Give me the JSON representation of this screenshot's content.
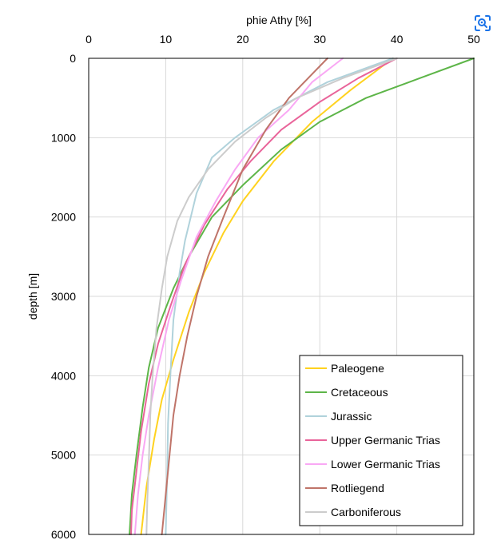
{
  "chart_data": {
    "type": "line",
    "title": "",
    "xlabel": "phie Athy [%]",
    "ylabel": "depth [m]",
    "xlim": [
      0,
      50
    ],
    "ylim": [
      0,
      6000
    ],
    "y_inverted": true,
    "x_axis_position": "top",
    "x_ticks": [
      0,
      10,
      20,
      30,
      40,
      50
    ],
    "y_ticks": [
      0,
      1000,
      2000,
      3000,
      4000,
      5000,
      6000
    ],
    "grid": true,
    "legend_position": "bottom-right",
    "series": [
      {
        "name": "Paleogene",
        "color": "#ffd21f",
        "points": [
          [
            39.5,
            0
          ],
          [
            34,
            400
          ],
          [
            29,
            800
          ],
          [
            24,
            1300
          ],
          [
            20,
            1800
          ],
          [
            17.5,
            2200
          ],
          [
            15,
            2700
          ],
          [
            13,
            3200
          ],
          [
            11,
            3800
          ],
          [
            9.5,
            4300
          ],
          [
            8.5,
            4800
          ],
          [
            7.5,
            5400
          ],
          [
            6.8,
            6000
          ]
        ]
      },
      {
        "name": "Cretaceous",
        "color": "#5db548",
        "points": [
          [
            50,
            0
          ],
          [
            43,
            250
          ],
          [
            36,
            500
          ],
          [
            30,
            800
          ],
          [
            25,
            1150
          ],
          [
            20,
            1600
          ],
          [
            16,
            2000
          ],
          [
            13,
            2500
          ],
          [
            11,
            2900
          ],
          [
            9,
            3400
          ],
          [
            7.8,
            3900
          ],
          [
            7,
            4400
          ],
          [
            6.2,
            5000
          ],
          [
            5.6,
            5500
          ],
          [
            5.3,
            6000
          ]
        ]
      },
      {
        "name": "Jurassic",
        "color": "#b0d2db",
        "points": [
          [
            39.5,
            0
          ],
          [
            31,
            300
          ],
          [
            24,
            650
          ],
          [
            19,
            1000
          ],
          [
            16,
            1250
          ],
          [
            14,
            1700
          ],
          [
            12.5,
            2300
          ],
          [
            11.8,
            2700
          ],
          [
            11,
            3300
          ],
          [
            10.6,
            4000
          ],
          [
            10.3,
            4600
          ],
          [
            10.2,
            5200
          ],
          [
            10,
            6000
          ]
        ]
      },
      {
        "name": "Upper Germanic Trias",
        "color": "#e9649a",
        "points": [
          [
            40,
            0
          ],
          [
            35,
            250
          ],
          [
            30,
            550
          ],
          [
            25,
            900
          ],
          [
            21,
            1300
          ],
          [
            18,
            1650
          ],
          [
            15,
            2100
          ],
          [
            12.5,
            2600
          ],
          [
            10.7,
            3100
          ],
          [
            9,
            3600
          ],
          [
            7.8,
            4100
          ],
          [
            6.8,
            4700
          ],
          [
            6.2,
            5200
          ],
          [
            5.6,
            5700
          ],
          [
            5.5,
            6000
          ]
        ]
      },
      {
        "name": "Lower Germanic Trias",
        "color": "#f9a8f4",
        "points": [
          [
            33,
            0
          ],
          [
            29,
            300
          ],
          [
            26,
            650
          ],
          [
            22,
            1000
          ],
          [
            19,
            1400
          ],
          [
            16.5,
            1800
          ],
          [
            14,
            2250
          ],
          [
            12,
            2800
          ],
          [
            10.4,
            3300
          ],
          [
            9,
            3900
          ],
          [
            7.8,
            4500
          ],
          [
            7,
            5000
          ],
          [
            6.4,
            5500
          ],
          [
            6,
            6000
          ]
        ]
      },
      {
        "name": "Rotliegend",
        "color": "#bf7469",
        "points": [
          [
            31,
            0
          ],
          [
            28.5,
            250
          ],
          [
            26,
            500
          ],
          [
            23,
            900
          ],
          [
            20,
            1400
          ],
          [
            17.5,
            2000
          ],
          [
            15.5,
            2500
          ],
          [
            14,
            3000
          ],
          [
            12.8,
            3500
          ],
          [
            11.8,
            4000
          ],
          [
            11,
            4500
          ],
          [
            10.5,
            5000
          ],
          [
            10,
            5500
          ],
          [
            9.5,
            6000
          ]
        ]
      },
      {
        "name": "Carboniferous",
        "color": "#cccccc",
        "points": [
          [
            40,
            0
          ],
          [
            33,
            250
          ],
          [
            27,
            500
          ],
          [
            23,
            750
          ],
          [
            19,
            1050
          ],
          [
            15.5,
            1400
          ],
          [
            13,
            1750
          ],
          [
            11.5,
            2050
          ],
          [
            10.2,
            2500
          ],
          [
            9.5,
            2900
          ],
          [
            8.8,
            3400
          ],
          [
            8.3,
            4000
          ],
          [
            8,
            4500
          ],
          [
            7.8,
            5100
          ],
          [
            7.6,
            5600
          ],
          [
            7.5,
            6000
          ]
        ]
      }
    ]
  }
}
